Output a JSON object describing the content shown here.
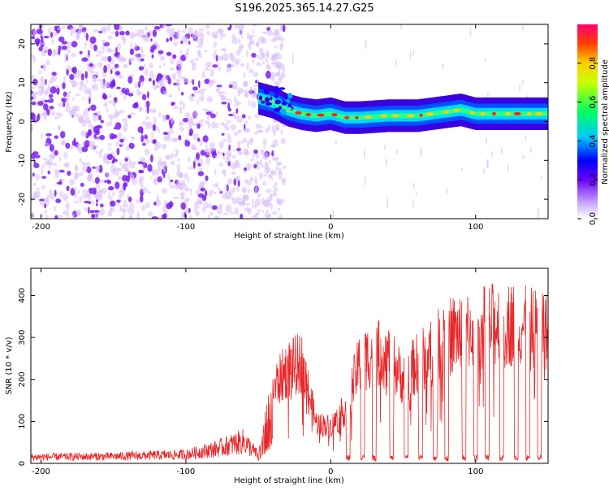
{
  "title": "S196.2025.365.14.27.G25",
  "colors": {
    "snr_line": "#e8282a",
    "spectrogram_points": "#7a1ff0",
    "spectrogram_light": "#d9bdf7"
  },
  "chart_data": [
    {
      "type": "heatmap",
      "name": "spectrogram",
      "xlabel": "Height of straight line (km)",
      "ylabel": "Frequency (Hz)",
      "xlim": [
        -207,
        150
      ],
      "ylim": [
        -25,
        25
      ],
      "x_ticks": [
        -200,
        -100,
        0,
        100
      ],
      "y_ticks": [
        -20,
        -10,
        0,
        10,
        20
      ],
      "colorbar": {
        "label": "Normalized spectral amplitude",
        "range": [
          0,
          1
        ],
        "ticks": [
          0.0,
          0.2,
          0.4,
          0.6,
          0.8
        ],
        "tick_labels": [
          "0.0",
          "0.2",
          "0.4",
          "0.6",
          "0.8"
        ],
        "stops": [
          "#ffffff",
          "#8000ff",
          "#0000ff",
          "#00ffff",
          "#00ff00",
          "#ffff00",
          "#ff0000",
          "#ff0080"
        ]
      },
      "noise_region_x": [
        -207,
        -50
      ],
      "signal_track": [
        {
          "x": -50,
          "y": 6
        },
        {
          "x": -40,
          "y": 5
        },
        {
          "x": -30,
          "y": 3
        },
        {
          "x": -20,
          "y": 2
        },
        {
          "x": -10,
          "y": 1.5
        },
        {
          "x": 0,
          "y": 2
        },
        {
          "x": 10,
          "y": 1
        },
        {
          "x": 20,
          "y": 1
        },
        {
          "x": 40,
          "y": 1.5
        },
        {
          "x": 60,
          "y": 1.5
        },
        {
          "x": 80,
          "y": 2.5
        },
        {
          "x": 90,
          "y": 3
        },
        {
          "x": 100,
          "y": 2
        },
        {
          "x": 120,
          "y": 2
        },
        {
          "x": 140,
          "y": 2
        },
        {
          "x": 150,
          "y": 2
        }
      ]
    },
    {
      "type": "line",
      "name": "snr",
      "xlabel": "Height of straight line (km)",
      "ylabel": "SNR (10 * v/v)",
      "xlim": [
        -207,
        150
      ],
      "ylim": [
        0,
        465
      ],
      "x_ticks": [
        -200,
        -100,
        0,
        100
      ],
      "y_ticks": [
        0,
        100,
        200,
        300,
        400
      ],
      "envelope": [
        {
          "x": -207,
          "y": 20
        },
        {
          "x": -150,
          "y": 22
        },
        {
          "x": -100,
          "y": 28
        },
        {
          "x": -80,
          "y": 45
        },
        {
          "x": -60,
          "y": 70
        },
        {
          "x": -50,
          "y": 25
        },
        {
          "x": -40,
          "y": 220
        },
        {
          "x": -30,
          "y": 280
        },
        {
          "x": -20,
          "y": 300
        },
        {
          "x": -10,
          "y": 120
        },
        {
          "x": 0,
          "y": 110
        },
        {
          "x": 10,
          "y": 160
        },
        {
          "x": 20,
          "y": 300
        },
        {
          "x": 30,
          "y": 330
        },
        {
          "x": 40,
          "y": 320
        },
        {
          "x": 50,
          "y": 250
        },
        {
          "x": 60,
          "y": 300
        },
        {
          "x": 70,
          "y": 330
        },
        {
          "x": 80,
          "y": 380
        },
        {
          "x": 90,
          "y": 390
        },
        {
          "x": 100,
          "y": 400
        },
        {
          "x": 110,
          "y": 410
        },
        {
          "x": 120,
          "y": 420
        },
        {
          "x": 130,
          "y": 410
        },
        {
          "x": 140,
          "y": 400
        },
        {
          "x": 150,
          "y": 390
        }
      ],
      "dips_x": [
        12,
        22,
        30,
        42,
        52,
        62,
        72,
        80,
        92,
        100,
        108,
        118,
        128,
        136,
        144
      ]
    }
  ]
}
